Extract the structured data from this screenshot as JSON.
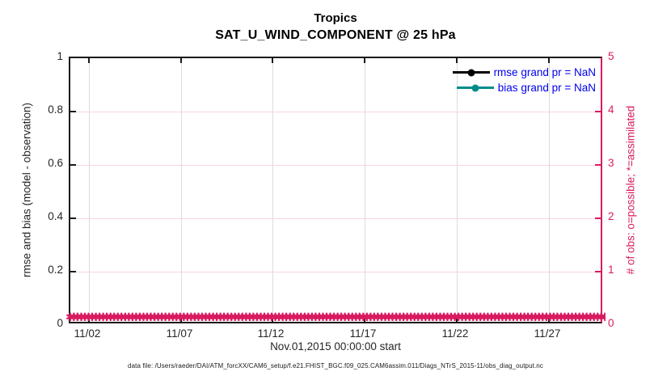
{
  "chart_data": {
    "type": "line",
    "title": "Tropics",
    "subtitle": "SAT_U_WIND_COMPONENT @ 25 hPa",
    "xlabel": "Nov.01,2015 00:00:00 start",
    "ylabel_left": "rmse and bias (model - observation)",
    "ylabel_right": "# of obs: o=possible; *=assimilated",
    "x_range": [
      "2015-11-01 00:00",
      "2015-11-30 00:00"
    ],
    "x_ticks": [
      "11/02",
      "11/07",
      "11/12",
      "11/17",
      "11/22",
      "11/27"
    ],
    "x_tick_days": [
      2,
      7,
      12,
      17,
      22,
      27
    ],
    "x_axis_days_span": 29,
    "ylim_left": [
      0,
      1
    ],
    "y_left_ticks": [
      "0",
      "0.2",
      "0.4",
      "0.6",
      "0.8",
      "1"
    ],
    "ylim_right": [
      0,
      5
    ],
    "y_right_ticks": [
      "0",
      "1",
      "2",
      "3",
      "4",
      "5"
    ],
    "grid": true,
    "legend_position": "top-right",
    "marker_glyph": "✱",
    "marker_count": 150,
    "series": [
      {
        "name": "rmse grand pr = NaN",
        "color": "#000000",
        "marker": "filled-circle",
        "values": "NaN"
      },
      {
        "name": "bias grand pr = NaN",
        "color": "#008B8B",
        "marker": "filled-circle",
        "values": "NaN"
      },
      {
        "name": "obs possible (o)",
        "color": "#D81B60",
        "marker": "o",
        "constant_value": 0
      },
      {
        "name": "obs assimilated (*)",
        "color": "#D81B60",
        "marker": "*",
        "constant_value": 0
      }
    ]
  },
  "colors": {
    "left_axis": "#1a1a1a",
    "right_axis": "#D81B60",
    "tick_label": "#262626",
    "grid_vertical": "#dcdcdc",
    "grid_horizontal": "#f5d4e2",
    "legend_text": "#0000EE",
    "rmse_line": "#000000",
    "bias_line": "#008B8B",
    "obs_markers": "#D81B60"
  },
  "footer": {
    "data_file": "data file: /Users/raeder/DAI/ATM_forcXX/CAM6_setup/f.e21.FHIST_BGC.f09_025.CAM6assim.011/Diags_NTrS_2015-11/obs_diag_output.nc"
  }
}
